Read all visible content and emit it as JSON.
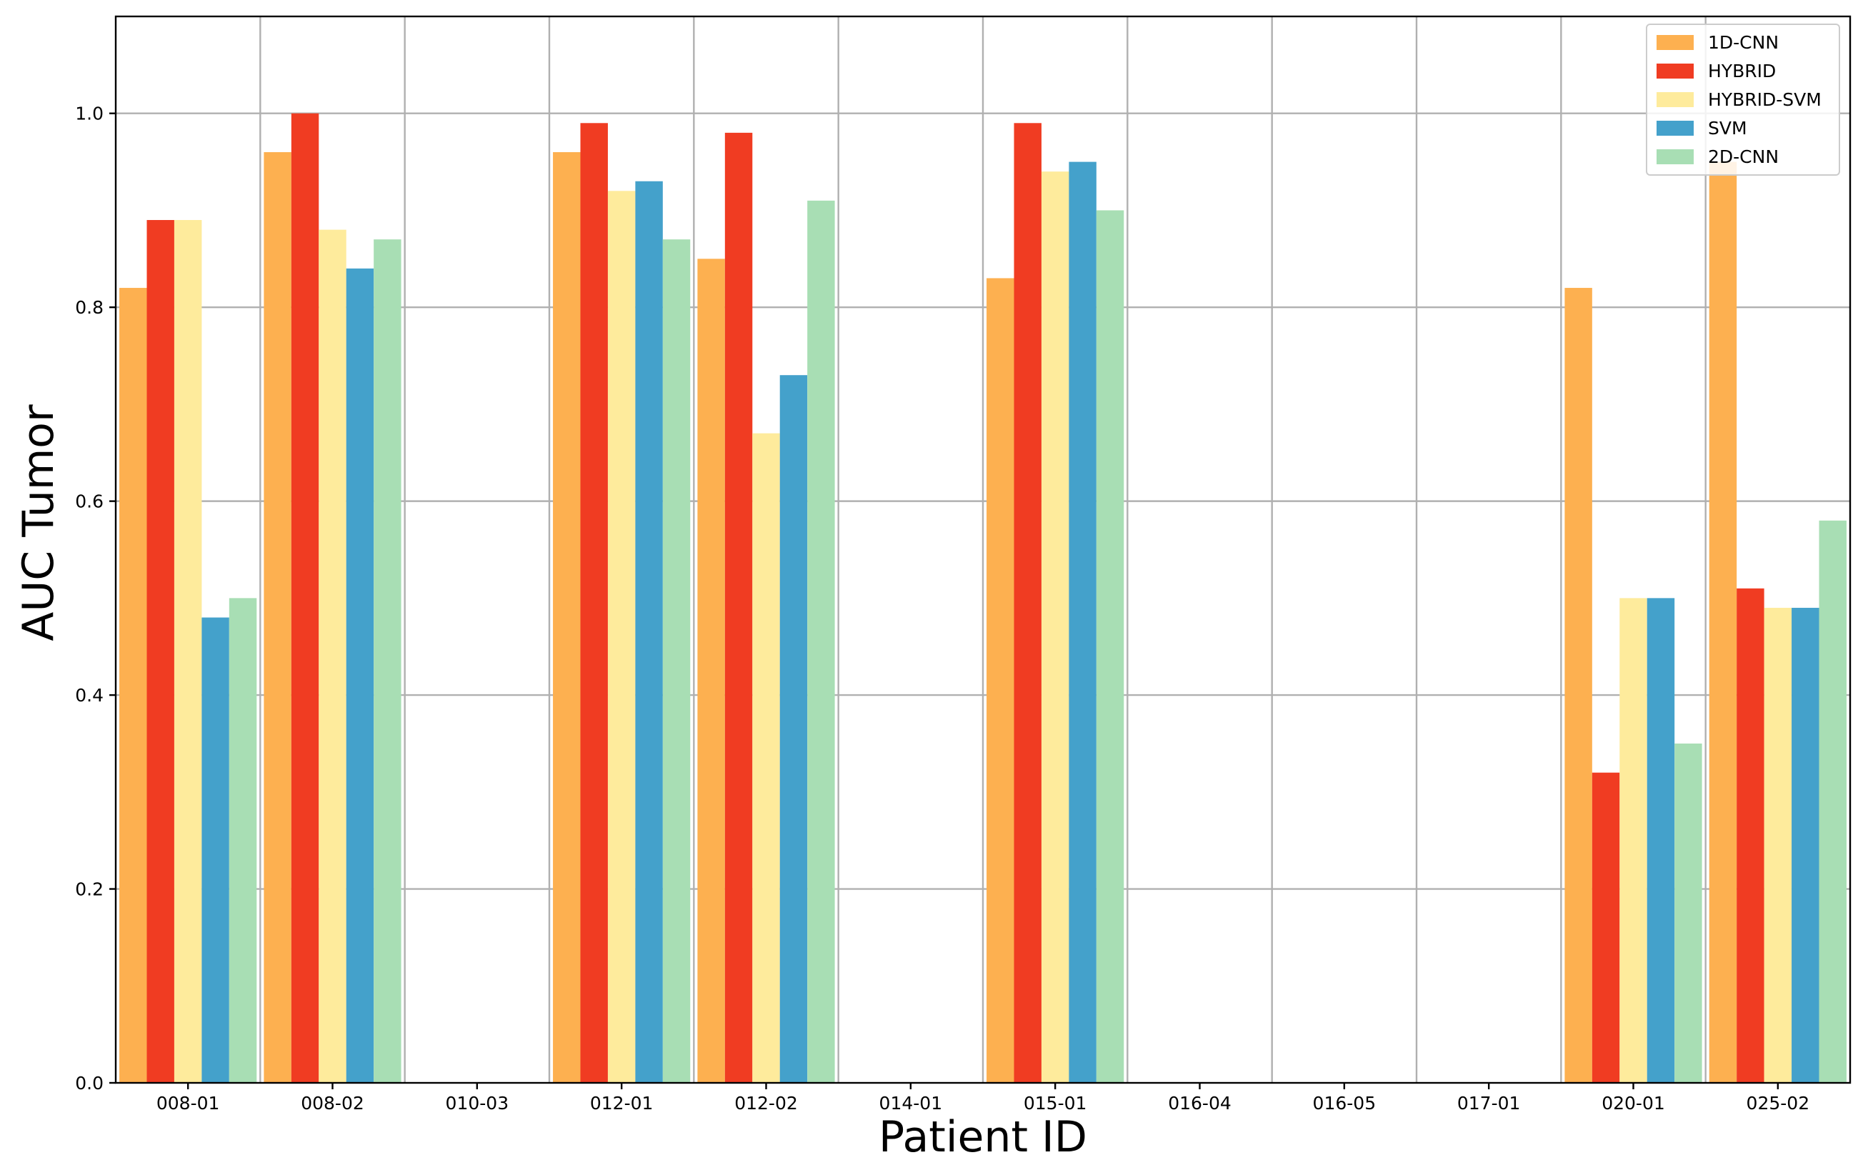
{
  "chart_data": {
    "type": "bar",
    "xlabel": "Patient ID",
    "ylabel": "AUC Tumor",
    "ylim": [
      0,
      1.1
    ],
    "yticks": [
      0.0,
      0.2,
      0.4,
      0.6,
      0.8,
      1.0
    ],
    "ytick_labels": [
      "0.0",
      "0.2",
      "0.4",
      "0.6",
      "0.8",
      "1.0"
    ],
    "grid": true,
    "legend_position": "top-right",
    "categories": [
      "008-01",
      "008-02",
      "010-03",
      "012-01",
      "012-02",
      "014-01",
      "015-01",
      "016-04",
      "016-05",
      "017-01",
      "020-01",
      "025-02"
    ],
    "series": [
      {
        "name": "1D-CNN",
        "color": "#fdb050",
        "values": [
          0.82,
          0.96,
          null,
          0.96,
          0.85,
          null,
          0.83,
          null,
          null,
          null,
          0.82,
          0.95
        ]
      },
      {
        "name": "HYBRID",
        "color": "#f03c22",
        "values": [
          0.89,
          1.0,
          null,
          0.99,
          0.98,
          null,
          0.99,
          null,
          null,
          null,
          0.32,
          0.51
        ]
      },
      {
        "name": "HYBRID-SVM",
        "color": "#feeb9c",
        "values": [
          0.89,
          0.88,
          null,
          0.92,
          0.67,
          null,
          0.94,
          null,
          null,
          null,
          0.5,
          0.49
        ]
      },
      {
        "name": "SVM",
        "color": "#44a1cb",
        "values": [
          0.48,
          0.84,
          null,
          0.93,
          0.73,
          null,
          0.95,
          null,
          null,
          null,
          0.5,
          0.49
        ]
      },
      {
        "name": "2D-CNN",
        "color": "#a8deb4",
        "values": [
          0.5,
          0.87,
          null,
          0.87,
          0.91,
          null,
          0.9,
          null,
          null,
          null,
          0.35,
          0.58
        ]
      }
    ]
  }
}
